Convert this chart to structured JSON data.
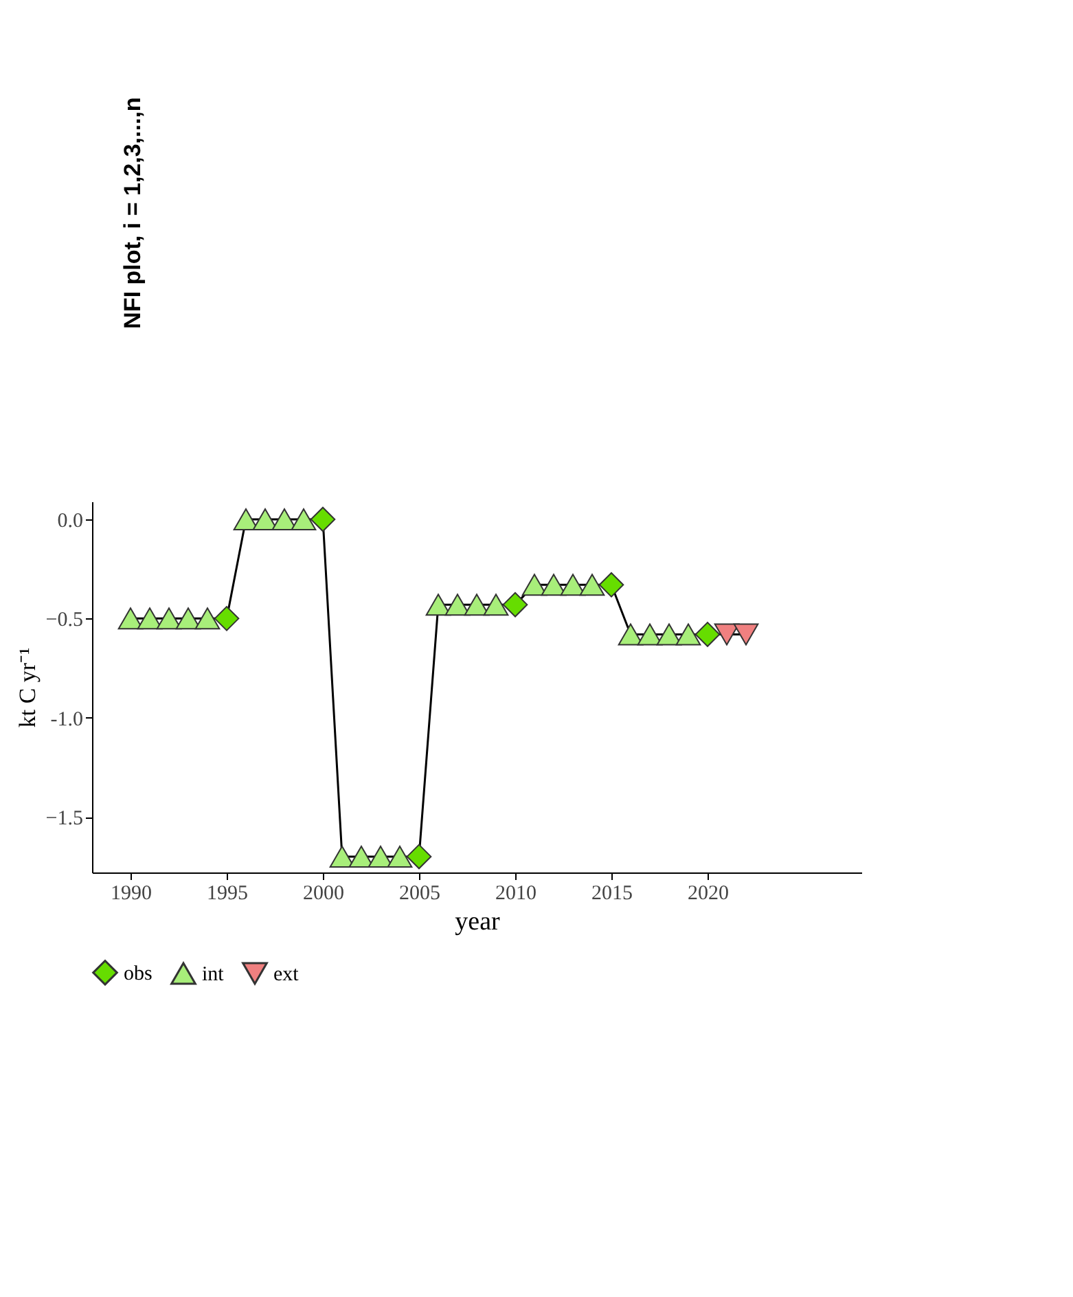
{
  "chart_data": {
    "type": "line",
    "xlabel": "year",
    "ylabel": "kt C yr⁻¹",
    "annotations": [
      "NFI plot, i = 1,2,3,...,n"
    ],
    "xlim": [
      1988,
      2028
    ],
    "xticks": [
      1990,
      1995,
      2000,
      2005,
      2010,
      2015,
      2020
    ],
    "ylim": [
      -1.78,
      0.09
    ],
    "yticks": [
      {
        "value": 0,
        "label": "0.0"
      },
      -0.5,
      {
        "value": -1,
        "label": "-1.0"
      },
      -1.5
    ],
    "grid": false,
    "legend": "bottom",
    "series": [
      {
        "color": "#000000",
        "marker": "none",
        "x": [
          1990,
          1991,
          1992,
          1993,
          1994,
          1995,
          1996,
          1997,
          1998,
          1999,
          2000,
          2001,
          2002,
          2003,
          2004,
          2005,
          2006,
          2007,
          2008,
          2009,
          2010,
          2011,
          2012,
          2013,
          2014,
          2015,
          2016,
          2017,
          2018,
          2019,
          2020,
          2021,
          2022
        ],
        "values": [
          -0.5,
          -0.5,
          -0.5,
          -0.5,
          -0.5,
          -0.5,
          0,
          0,
          0,
          0,
          0,
          -1.7,
          -1.7,
          -1.7,
          -1.7,
          -1.7,
          -0.43,
          -0.43,
          -0.43,
          -0.43,
          -0.43,
          -0.33,
          -0.33,
          -0.33,
          -0.33,
          -0.33,
          -0.58,
          -0.58,
          -0.58,
          -0.58,
          -0.58,
          -0.58,
          -0.58
        ]
      },
      {
        "type": "scatter",
        "name": "obs",
        "color": "#66dd00",
        "marker": "diamond",
        "x": [
          1995,
          2000,
          2005,
          2010,
          2015,
          2020
        ],
        "values": [
          -0.5,
          0,
          -1.7,
          -0.43,
          -0.33,
          -0.58
        ]
      },
      {
        "type": "scatter",
        "name": "int",
        "color": "#a8ee7a",
        "marker": "triangle-up",
        "x": [
          1990,
          1991,
          1992,
          1993,
          1994,
          1996,
          1997,
          1998,
          1999,
          2001,
          2002,
          2003,
          2004,
          2006,
          2007,
          2008,
          2009,
          2011,
          2012,
          2013,
          2014,
          2016,
          2017,
          2018,
          2019
        ],
        "values": [
          -0.5,
          -0.5,
          -0.5,
          -0.5,
          -0.5,
          0,
          0,
          0,
          0,
          -1.7,
          -1.7,
          -1.7,
          -1.7,
          -0.43,
          -0.43,
          -0.43,
          -0.43,
          -0.33,
          -0.33,
          -0.33,
          -0.33,
          -0.58,
          -0.58,
          -0.58,
          -0.58
        ]
      },
      {
        "type": "scatter",
        "name": "ext",
        "color": "#f08080",
        "marker": "triangle-down",
        "x": [
          2021,
          2022
        ],
        "values": [
          -0.58,
          -0.58
        ]
      }
    ]
  }
}
